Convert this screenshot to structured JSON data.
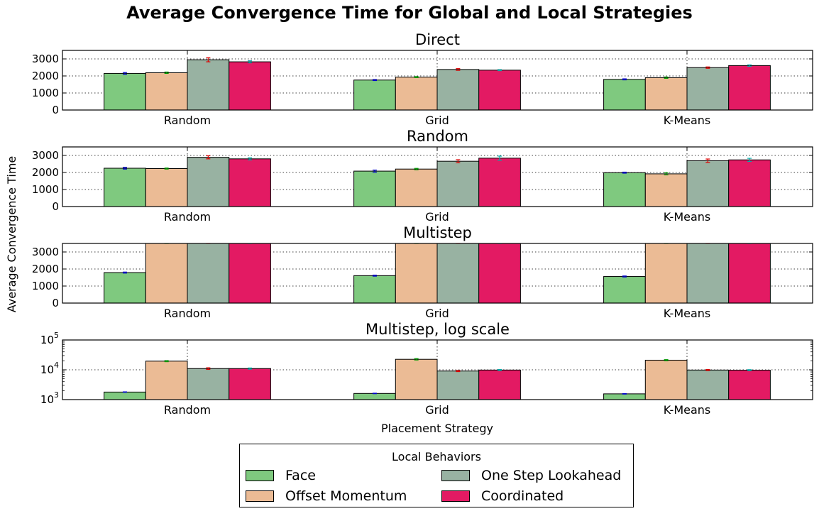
{
  "title": "Average Convergence Time for Global and Local Strategies",
  "ylabel": "Average Convergence Time",
  "xlabel": "Placement Strategy",
  "legend": {
    "title": "Local Behaviors",
    "items": [
      {
        "label": "Face",
        "color": "#7fc97f"
      },
      {
        "label": "Offset Momentum",
        "color": "#ebbb95"
      },
      {
        "label": "One Step Lookahead",
        "color": "#98b2a2"
      },
      {
        "label": "Coordinated",
        "color": "#e31a63"
      }
    ]
  },
  "chart_data": [
    {
      "type": "bar",
      "title": "Direct",
      "categories": [
        "Random",
        "Grid",
        "K-Means"
      ],
      "ylim": [
        0,
        3500
      ],
      "yticks": [
        0,
        1000,
        2000,
        3000
      ],
      "grid": true,
      "series": [
        {
          "name": "Face",
          "color": "#7fc97f",
          "values": [
            2150,
            1760,
            1800
          ],
          "errors": [
            50,
            30,
            30
          ],
          "error_color": "#0000cc"
        },
        {
          "name": "Offset Momentum",
          "color": "#ebbb95",
          "values": [
            2190,
            1930,
            1900
          ],
          "errors": [
            40,
            30,
            40
          ],
          "error_color": "#009900"
        },
        {
          "name": "One Step Lookahead",
          "color": "#98b2a2",
          "values": [
            2950,
            2380,
            2490
          ],
          "errors": [
            120,
            50,
            40
          ],
          "error_color": "#dd0000"
        },
        {
          "name": "Coordinated",
          "color": "#e31a63",
          "values": [
            2830,
            2340,
            2610
          ],
          "errors": [
            60,
            30,
            40
          ],
          "error_color": "#00aaaa"
        }
      ]
    },
    {
      "type": "bar",
      "title": "Random",
      "categories": [
        "Random",
        "Grid",
        "K-Means"
      ],
      "ylim": [
        0,
        3500
      ],
      "yticks": [
        0,
        1000,
        2000,
        3000
      ],
      "grid": true,
      "series": [
        {
          "name": "Face",
          "color": "#7fc97f",
          "values": [
            2250,
            2080,
            1990
          ],
          "errors": [
            50,
            60,
            30
          ],
          "error_color": "#0000cc"
        },
        {
          "name": "Offset Momentum",
          "color": "#ebbb95",
          "values": [
            2230,
            2200,
            1920
          ],
          "errors": [
            30,
            40,
            60
          ],
          "error_color": "#009900"
        },
        {
          "name": "One Step Lookahead",
          "color": "#98b2a2",
          "values": [
            2890,
            2660,
            2690
          ],
          "errors": [
            90,
            90,
            100
          ],
          "error_color": "#dd0000"
        },
        {
          "name": "Coordinated",
          "color": "#e31a63",
          "values": [
            2800,
            2840,
            2740
          ],
          "errors": [
            60,
            120,
            90
          ],
          "error_color": "#00aaaa"
        }
      ]
    },
    {
      "type": "bar",
      "title": "Multistep",
      "categories": [
        "Random",
        "Grid",
        "K-Means"
      ],
      "ylim": [
        0,
        3500
      ],
      "yticks": [
        0,
        1000,
        2000,
        3000
      ],
      "grid": true,
      "series": [
        {
          "name": "Face",
          "color": "#7fc97f",
          "values": [
            1790,
            1610,
            1560
          ],
          "errors": [
            30,
            30,
            30
          ],
          "error_color": "#0000cc"
        },
        {
          "name": "Offset Momentum",
          "color": "#ebbb95",
          "values": [
            19500,
            22500,
            21000
          ],
          "errors": [
            800,
            1200,
            900
          ],
          "error_color": "#009900"
        },
        {
          "name": "One Step Lookahead",
          "color": "#98b2a2",
          "values": [
            11000,
            9100,
            9800
          ],
          "errors": [
            700,
            400,
            400
          ],
          "error_color": "#dd0000"
        },
        {
          "name": "Coordinated",
          "color": "#e31a63",
          "values": [
            11000,
            9800,
            9700
          ],
          "errors": [
            500,
            400,
            400
          ],
          "error_color": "#00aaaa"
        }
      ]
    },
    {
      "type": "bar",
      "title": "Multistep, log scale",
      "categories": [
        "Random",
        "Grid",
        "K-Means"
      ],
      "yscale": "log",
      "ylim": [
        1000,
        100000
      ],
      "yticks": [
        1000,
        10000,
        100000
      ],
      "ytick_labels": [
        {
          "base": "10",
          "exp": "3"
        },
        {
          "base": "10",
          "exp": "4"
        },
        {
          "base": "10",
          "exp": "5"
        }
      ],
      "grid": true,
      "series": [
        {
          "name": "Face",
          "color": "#7fc97f",
          "values": [
            1790,
            1610,
            1560
          ],
          "errors": [
            30,
            30,
            30
          ],
          "error_color": "#0000cc"
        },
        {
          "name": "Offset Momentum",
          "color": "#ebbb95",
          "values": [
            19500,
            22500,
            21000
          ],
          "errors": [
            800,
            1200,
            900
          ],
          "error_color": "#009900"
        },
        {
          "name": "One Step Lookahead",
          "color": "#98b2a2",
          "values": [
            11000,
            9100,
            9800
          ],
          "errors": [
            700,
            400,
            400
          ],
          "error_color": "#dd0000"
        },
        {
          "name": "Coordinated",
          "color": "#e31a63",
          "values": [
            11000,
            9800,
            9700
          ],
          "errors": [
            500,
            400,
            400
          ],
          "error_color": "#00aaaa"
        }
      ]
    }
  ]
}
